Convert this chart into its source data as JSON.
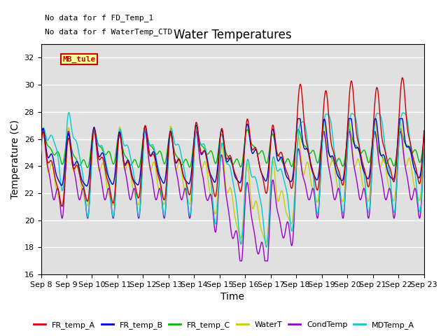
{
  "title": "Water Temperatures",
  "xlabel": "Time",
  "ylabel": "Temperature (C)",
  "ylim": [
    16,
    33
  ],
  "yticks": [
    16,
    18,
    20,
    22,
    24,
    26,
    28,
    30,
    32
  ],
  "xtick_labels": [
    "Sep 8",
    "Sep 9",
    "Sep 10",
    "Sep 11",
    "Sep 12",
    "Sep 13",
    "Sep 14",
    "Sep 15",
    "Sep 16",
    "Sep 17",
    "Sep 18",
    "Sep 19",
    "Sep 20",
    "Sep 21",
    "Sep 22",
    "Sep 23"
  ],
  "annotation_lines": [
    "No data for f FD_Temp_1",
    "No data for f WaterTemp_CTD"
  ],
  "legend_box_label": "MB_tule",
  "series_colors": {
    "FR_temp_A": "#cc0000",
    "FR_temp_B": "#0000cc",
    "FR_temp_C": "#00bb00",
    "WaterT": "#cccc00",
    "CondTemp": "#9900cc",
    "MDTemp_A": "#00cccc"
  },
  "bg_color": "#e0e0e0",
  "grid_color": "#ffffff",
  "title_fontsize": 12,
  "label_fontsize": 10,
  "tick_fontsize": 8,
  "annot_fontsize": 8
}
